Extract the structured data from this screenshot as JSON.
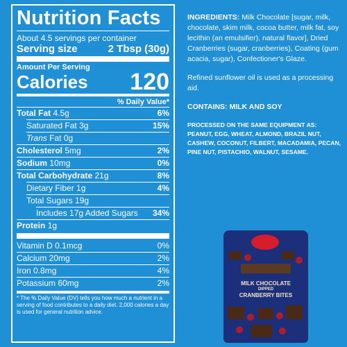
{
  "nutrition": {
    "title": "Nutrition Facts",
    "servings_per_container": "About 4.5 servings per container",
    "serving_size_label": "Serving size",
    "serving_size_value": "2 Tbsp (30g)",
    "amount_per_serving": "Amount Per Serving",
    "calories_label": "Calories",
    "calories_value": "120",
    "dv_header": "% Daily Value*",
    "rows": [
      {
        "label": "Total Fat",
        "amount": "4.5g",
        "dv": "6%"
      },
      {
        "label": "Saturated Fat",
        "amount": "3g",
        "dv": "15%"
      },
      {
        "label": "Trans",
        "amount": "Fat 0g",
        "dv": ""
      },
      {
        "label": "Cholesterol",
        "amount": "5mg",
        "dv": "2%"
      },
      {
        "label": "Sodium",
        "amount": "10mg",
        "dv": "0%"
      },
      {
        "label": "Total Carbohydrate",
        "amount": "21g",
        "dv": "8%"
      },
      {
        "label": "Dietary Fiber",
        "amount": "1g",
        "dv": "4%"
      },
      {
        "label": "Total Sugars",
        "amount": "19g",
        "dv": ""
      },
      {
        "label": "Includes 17g Added Sugars",
        "amount": "",
        "dv": "34%"
      },
      {
        "label": "Protein",
        "amount": "1g",
        "dv": ""
      }
    ],
    "vitamins": [
      {
        "label": "Vitamin D 0.1mcg",
        "dv": "0%"
      },
      {
        "label": "Calcium 20mg",
        "dv": "2%"
      },
      {
        "label": "Iron 0.8mg",
        "dv": "4%"
      },
      {
        "label": "Potassium 60mg",
        "dv": "2%"
      }
    ],
    "footnote": "* The % Daily Value (DV) tells you how much a nutrient in a serving of food contributes to a daily diet. 2,000 calories a day is used for general nutrition advice."
  },
  "ingredients": {
    "label": "INGREDIENTS:",
    "text": "Milk Chocolate [sugar, milk, chocolate, skim milk, cocoa butter, milk fat, soy lecithin (an emulsifier), natural flavor], Dried Cranberries (sugar, cranberries), Coating (gum acacia, sugar), Confectioner's Glaze.",
    "oil_note": "Refined sunflower oil is used as a processing aid.",
    "contains": "CONTAINS: MILK AND SOY",
    "processed": "PROCESSED ON THE SAME EQUIPMENT AS: PEANUT, EGG, WHEAT, ALMOND, BRAZIL NUT, CASHEW, COCONUT, FILBERT, MACADAMIA, PECAN, PINE NUT, PISTACHIO, WALNUT, SESAME."
  },
  "package": {
    "line1": "MILK CHOCOLATE",
    "line2": "DIPPED",
    "line3": "CRANBERRY BITES"
  },
  "colors": {
    "background": "#1f8fd6",
    "text": "#ffffff",
    "package": "#1c2f7a"
  }
}
